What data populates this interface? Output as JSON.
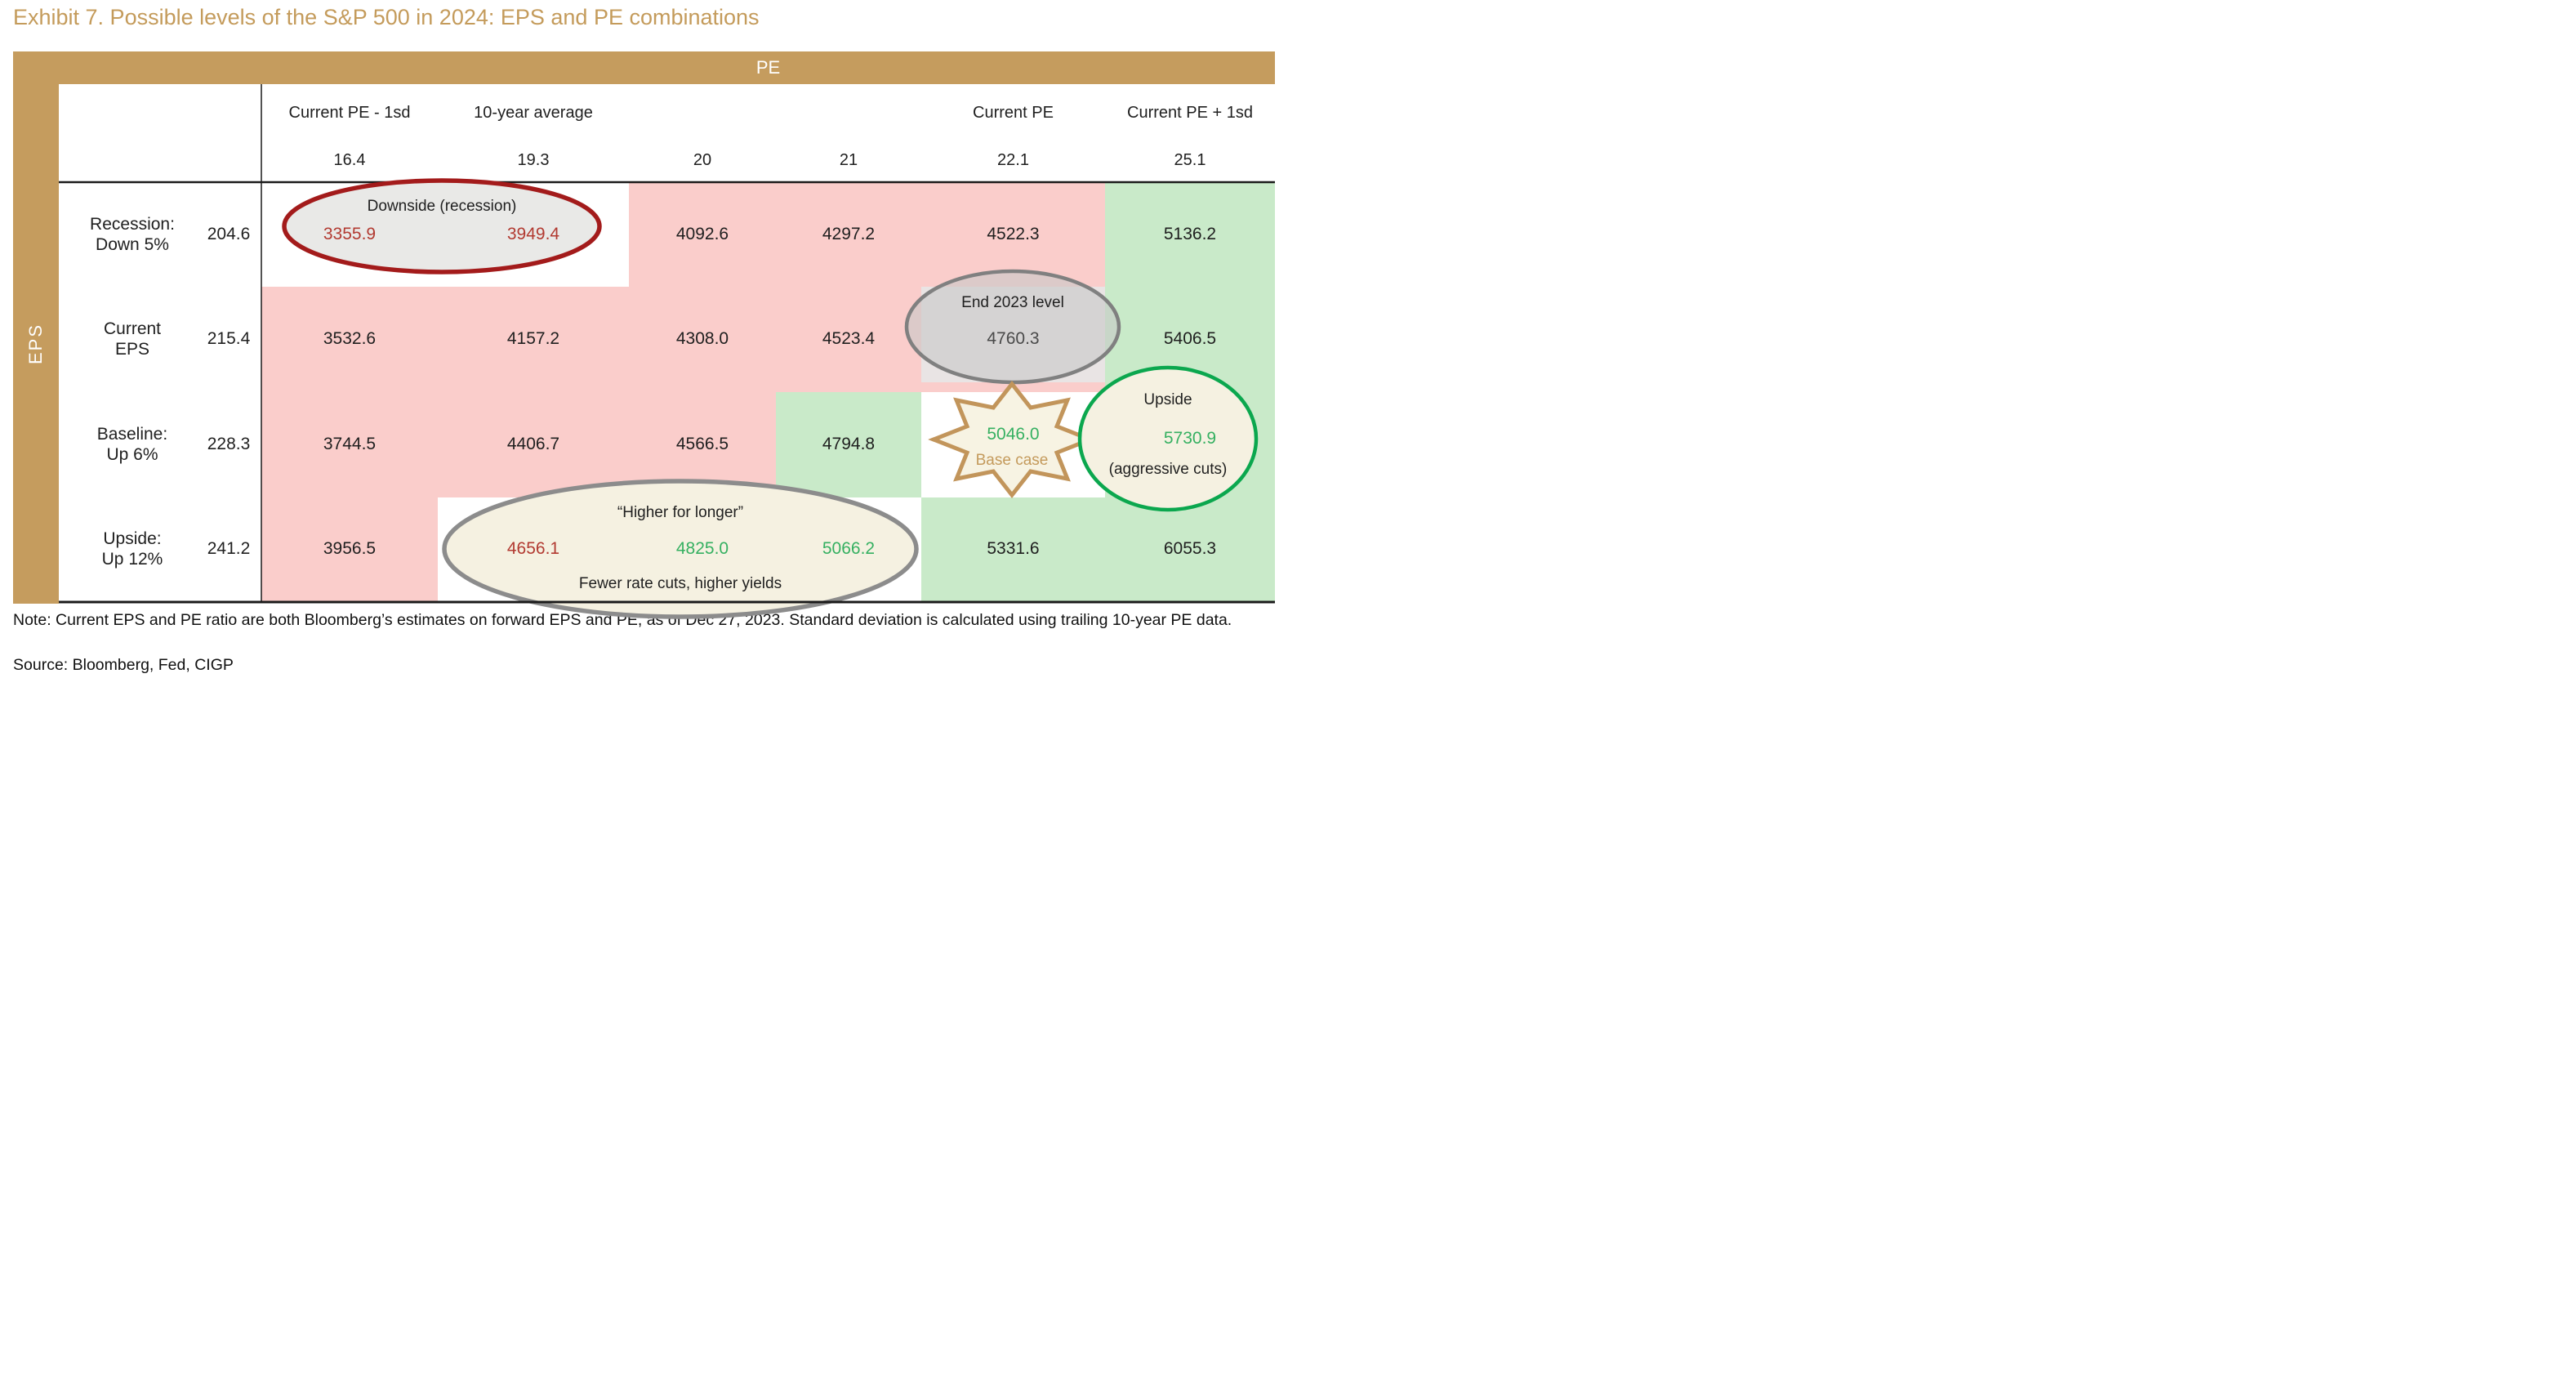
{
  "title": "Exhibit 7. Possible levels of the S&P 500 in 2024: EPS and PE combinations",
  "matrix": {
    "pe_axis_label": "PE",
    "eps_axis_label": "EPS",
    "col_headers": [
      "Current PE - 1sd",
      "10-year average",
      "",
      "",
      "Current PE",
      "Current PE + 1sd"
    ],
    "pe_values": [
      "16.4",
      "19.3",
      "20",
      "21",
      "22.1",
      "25.1"
    ],
    "rows": [
      {
        "label_line1": "Recession:",
        "label_line2": "Down 5%",
        "eps": "204.6",
        "bg": [
          "white",
          "white",
          "pink",
          "pink",
          "pink",
          "green"
        ],
        "cells": [
          {
            "v": "3355.9",
            "color": "red"
          },
          {
            "v": "3949.4",
            "color": "red"
          },
          {
            "v": "4092.6"
          },
          {
            "v": "4297.2"
          },
          {
            "v": "4522.3"
          },
          {
            "v": "5136.2"
          }
        ]
      },
      {
        "label_line1": "Current",
        "label_line2": "EPS",
        "eps": "215.4",
        "bg": [
          "pink",
          "pink",
          "pink",
          "pink",
          "pink",
          "green"
        ],
        "cells": [
          {
            "v": "3532.6"
          },
          {
            "v": "4157.2"
          },
          {
            "v": "4308.0"
          },
          {
            "v": "4523.4"
          },
          {
            "v": "4760.3",
            "color": "grey"
          },
          {
            "v": "5406.5"
          }
        ]
      },
      {
        "label_line1": "Baseline:",
        "label_line2": "Up 6%",
        "eps": "228.3",
        "bg": [
          "pink",
          "pink",
          "pink",
          "green",
          "white",
          "green"
        ],
        "cells": [
          {
            "v": "3744.5"
          },
          {
            "v": "4406.7"
          },
          {
            "v": "4566.5"
          },
          {
            "v": "4794.8"
          },
          {
            "v": "5046.0",
            "color": "green"
          },
          {
            "v": "5730.9",
            "color": "green"
          }
        ]
      },
      {
        "label_line1": "Upside:",
        "label_line2": "Up 12%",
        "eps": "241.2",
        "bg": [
          "pink",
          "white",
          "white",
          "white",
          "green",
          "green"
        ],
        "cells": [
          {
            "v": "3956.5"
          },
          {
            "v": "4656.1",
            "color": "red"
          },
          {
            "v": "4825.0",
            "color": "green"
          },
          {
            "v": "5066.2",
            "color": "green"
          },
          {
            "v": "5331.6"
          },
          {
            "v": "6055.3"
          }
        ]
      }
    ]
  },
  "annotations": {
    "downside": "Downside (recession)",
    "end2023": "End 2023 level",
    "base_case": "Base case",
    "upside": "Upside",
    "aggressive": "(aggressive cuts)",
    "higher_for_longer": "“Higher for longer”",
    "higher_for_longer_sub": "Fewer rate cuts, higher yields"
  },
  "colors": {
    "tan": "#C59C5E",
    "pink_cell": "#FACDCB",
    "green_cell": "#C9EAC9",
    "red_value": "#B23A31",
    "green_value": "#35B061",
    "red_ellipse_stroke": "#A31B1B",
    "grey_ellipse_stroke": "#808080",
    "green_ellipse_stroke": "#0BA74E"
  },
  "note": "Note: Current EPS and PE ratio are both Bloomberg’s estimates on forward EPS and PE, as of Dec 27, 2023. Standard deviation is calculated using trailing 10-year PE data.",
  "source": "Source: Bloomberg, Fed, CIGP",
  "chart_data": {
    "type": "table",
    "title": "Exhibit 7. Possible levels of the S&P 500 in 2024: EPS and PE combinations",
    "x_axis": {
      "label": "PE",
      "tick_labels": [
        16.4,
        19.3,
        20,
        21,
        22.1,
        25.1
      ],
      "tick_notes": [
        "Current PE - 1sd",
        "10-year average",
        "",
        "",
        "Current PE",
        "Current PE + 1sd"
      ]
    },
    "y_axis": {
      "label": "EPS",
      "scenarios": [
        "Recession: Down 5%",
        "Current EPS",
        "Baseline: Up 6%",
        "Upside: Up 12%"
      ],
      "eps_values": [
        204.6,
        215.4,
        228.3,
        241.2
      ]
    },
    "values": [
      [
        3355.9,
        3949.4,
        4092.6,
        4297.2,
        4522.3,
        5136.2
      ],
      [
        3532.6,
        4157.2,
        4308.0,
        4523.4,
        4760.3,
        5406.5
      ],
      [
        3744.5,
        4406.7,
        4566.5,
        4794.8,
        5046.0,
        5730.9
      ],
      [
        3956.5,
        4656.1,
        4825.0,
        5066.2,
        5331.6,
        6055.3
      ]
    ],
    "cell_shading": [
      [
        "white",
        "white",
        "pink",
        "pink",
        "pink",
        "green"
      ],
      [
        "pink",
        "pink",
        "pink",
        "pink",
        "pink",
        "green"
      ],
      [
        "pink",
        "pink",
        "pink",
        "green",
        "white",
        "green"
      ],
      [
        "pink",
        "white",
        "white",
        "white",
        "green",
        "green"
      ]
    ],
    "callouts": [
      {
        "label": "Downside (recession)",
        "cells": [
          3355.9,
          3949.4
        ]
      },
      {
        "label": "End 2023 level",
        "cells": [
          4760.3
        ]
      },
      {
        "label": "Base case",
        "cells": [
          5046.0
        ]
      },
      {
        "label": "Upside (aggressive cuts)",
        "cells": [
          5730.9
        ]
      },
      {
        "label": "“Higher for longer” — Fewer rate cuts, higher yields",
        "cells": [
          4656.1,
          4825.0,
          5066.2
        ]
      }
    ],
    "legend_position": "none",
    "grid": false
  }
}
